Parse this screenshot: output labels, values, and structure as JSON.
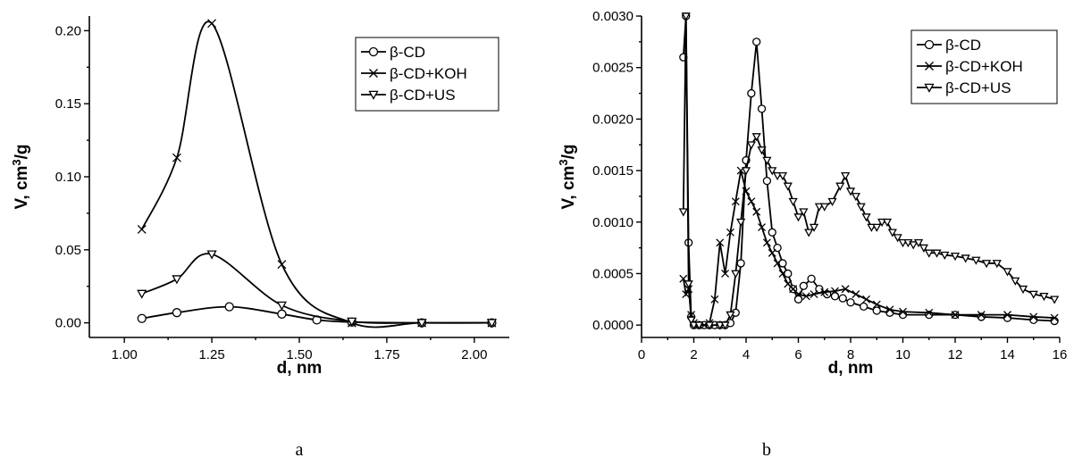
{
  "chart_data": [
    {
      "type": "line",
      "panel_label": "a",
      "xlabel": "d, nm",
      "ylabel": "V, cm3/g",
      "xlim": [
        0.9,
        2.1
      ],
      "ylim": [
        -0.01,
        0.21
      ],
      "xticks": [
        "1.00",
        "1.25",
        "1.50",
        "1.75",
        "2.00"
      ],
      "yticks": [
        "0.00",
        "0.05",
        "0.10",
        "0.15",
        "0.20"
      ],
      "legend_position": "top-right",
      "series": [
        {
          "name": "β-CD",
          "marker": "circle",
          "x": [
            1.05,
            1.15,
            1.3,
            1.45,
            1.55,
            1.65,
            1.85,
            2.05
          ],
          "y": [
            0.003,
            0.007,
            0.011,
            0.006,
            0.002,
            0.0005,
            0.0,
            0.0
          ]
        },
        {
          "name": "β-CD+KOH",
          "marker": "x",
          "x": [
            1.05,
            1.15,
            1.25,
            1.45,
            1.65,
            1.85,
            2.05
          ],
          "y": [
            0.064,
            0.113,
            0.205,
            0.04,
            0.0,
            0.0,
            0.0
          ]
        },
        {
          "name": "β-CD+US",
          "marker": "triangle-down",
          "x": [
            1.05,
            1.15,
            1.25,
            1.45,
            1.65,
            1.85,
            2.05
          ],
          "y": [
            0.02,
            0.03,
            0.047,
            0.012,
            0.001,
            0.0,
            0.0
          ]
        }
      ]
    },
    {
      "type": "line",
      "panel_label": "b",
      "xlabel": "d, nm",
      "ylabel": "V, cm3/g",
      "xlim": [
        0,
        16
      ],
      "ylim": [
        -0.00012,
        0.003
      ],
      "xticks": [
        "0",
        "2",
        "4",
        "6",
        "8",
        "10",
        "12",
        "14",
        "16"
      ],
      "yticks": [
        "0.0000",
        "0.0005",
        "0.0010",
        "0.0015",
        "0.0020",
        "0.0025",
        "0.0030"
      ],
      "legend_position": "top-right",
      "series": [
        {
          "name": "β-CD",
          "marker": "circle",
          "x": [
            1.6,
            1.7,
            1.8,
            1.9,
            2.0,
            2.2,
            2.4,
            2.6,
            2.8,
            3.0,
            3.2,
            3.4,
            3.6,
            3.8,
            4.0,
            4.2,
            4.4,
            4.6,
            4.8,
            5.0,
            5.2,
            5.4,
            5.6,
            5.8,
            6.0,
            6.2,
            6.5,
            6.8,
            7.1,
            7.4,
            7.7,
            8.0,
            8.5,
            9.0,
            9.5,
            10.0,
            11.0,
            12.0,
            13.0,
            14.0,
            15.0,
            15.8
          ],
          "y": [
            0.0026,
            0.003,
            0.0008,
            8e-05,
            0.0,
            0.0,
            0.0,
            0.0,
            0.0,
            0.0,
            0.0,
            2e-05,
            0.00012,
            0.0006,
            0.0016,
            0.00225,
            0.00275,
            0.0021,
            0.0014,
            0.0009,
            0.00075,
            0.0006,
            0.0005,
            0.00035,
            0.00025,
            0.00038,
            0.00045,
            0.00035,
            0.0003,
            0.00028,
            0.00026,
            0.00022,
            0.00018,
            0.00014,
            0.00012,
            0.0001,
            0.0001,
            0.0001,
            8e-05,
            7e-05,
            5e-05,
            4e-05
          ]
        },
        {
          "name": "β-CD+KOH",
          "marker": "x",
          "x": [
            1.6,
            1.7,
            1.8,
            1.9,
            2.0,
            2.2,
            2.4,
            2.6,
            2.8,
            3.0,
            3.2,
            3.4,
            3.6,
            3.8,
            4.0,
            4.2,
            4.4,
            4.6,
            4.8,
            5.0,
            5.2,
            5.4,
            5.6,
            5.8,
            6.0,
            6.3,
            6.6,
            7.0,
            7.4,
            7.8,
            8.2,
            8.6,
            9.0,
            9.5,
            10.0,
            11.0,
            12.0,
            13.0,
            14.0,
            15.0,
            15.8
          ],
          "y": [
            0.00045,
            0.0003,
            0.00035,
            0.0001,
            2e-05,
            0.0,
            0.0,
            2e-05,
            0.00025,
            0.0008,
            0.0005,
            0.0009,
            0.0012,
            0.0015,
            0.0013,
            0.0012,
            0.0011,
            0.00095,
            0.0008,
            0.0007,
            0.0006,
            0.0005,
            0.0004,
            0.00035,
            0.0003,
            0.00028,
            0.0003,
            0.00032,
            0.00033,
            0.00035,
            0.0003,
            0.00025,
            0.0002,
            0.00015,
            0.00013,
            0.00012,
            0.0001,
            0.0001,
            0.0001,
            8e-05,
            7e-05
          ]
        },
        {
          "name": "β-CD+US",
          "marker": "triangle-down",
          "x": [
            1.6,
            1.7,
            1.8,
            1.9,
            2.0,
            2.2,
            2.6,
            3.0,
            3.2,
            3.4,
            3.6,
            3.8,
            4.0,
            4.2,
            4.4,
            4.6,
            4.8,
            5.0,
            5.2,
            5.4,
            5.6,
            5.8,
            6.0,
            6.2,
            6.4,
            6.6,
            6.8,
            7.0,
            7.3,
            7.6,
            7.8,
            8.0,
            8.2,
            8.4,
            8.6,
            8.8,
            9.0,
            9.2,
            9.4,
            9.6,
            9.8,
            10.0,
            10.2,
            10.4,
            10.6,
            10.8,
            11.0,
            11.3,
            11.6,
            12.0,
            12.4,
            12.8,
            13.2,
            13.6,
            14.0,
            14.3,
            14.6,
            15.0,
            15.4,
            15.8
          ],
          "y": [
            0.0011,
            0.003,
            0.0004,
            5e-05,
            0.0,
            0.0,
            0.0,
            0.0,
            0.0,
            0.0001,
            0.0005,
            0.001,
            0.0015,
            0.00175,
            0.00183,
            0.0017,
            0.0016,
            0.0015,
            0.00145,
            0.00145,
            0.00135,
            0.0012,
            0.00105,
            0.0011,
            0.0009,
            0.00095,
            0.00115,
            0.00115,
            0.0012,
            0.00135,
            0.00145,
            0.0013,
            0.00125,
            0.00115,
            0.00105,
            0.00095,
            0.00095,
            0.001,
            0.001,
            0.0009,
            0.00085,
            0.0008,
            0.0008,
            0.00078,
            0.0008,
            0.00075,
            0.0007,
            0.0007,
            0.00068,
            0.00067,
            0.00065,
            0.00063,
            0.0006,
            0.0006,
            0.00052,
            0.00043,
            0.00035,
            0.0003,
            0.00028,
            0.00025
          ]
        }
      ]
    }
  ]
}
